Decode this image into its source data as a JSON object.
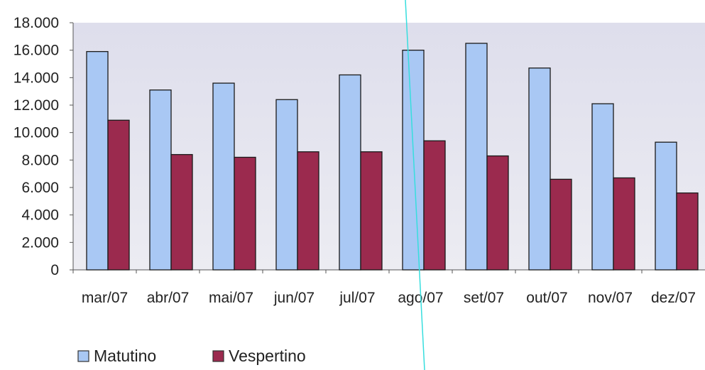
{
  "chart_data": {
    "type": "bar",
    "categories": [
      "mar/07",
      "abr/07",
      "mai/07",
      "jun/07",
      "jul/07",
      "ago/07",
      "set/07",
      "out/07",
      "nov/07",
      "dez/07"
    ],
    "series": [
      {
        "name": "Matutino",
        "values": [
          15900,
          13100,
          13600,
          12400,
          14200,
          16000,
          16500,
          14700,
          12100,
          9300
        ],
        "color": "#a9c8f4"
      },
      {
        "name": "Vespertino",
        "values": [
          10900,
          8400,
          8200,
          8600,
          8600,
          9400,
          8300,
          6600,
          6700,
          5600
        ],
        "color": "#9b2a4e"
      }
    ],
    "y_ticks": [
      "0",
      "2.000",
      "4.000",
      "6.000",
      "8.000",
      "10.000",
      "12.000",
      "14.000",
      "16.000",
      "18.000"
    ],
    "ylim": [
      0,
      18000
    ],
    "title": "",
    "xlabel": "",
    "ylabel": "",
    "grid": false,
    "legend_position": "bottom-left",
    "plot_background": "#dcdcec",
    "annotation_line_color": "#37dede"
  }
}
